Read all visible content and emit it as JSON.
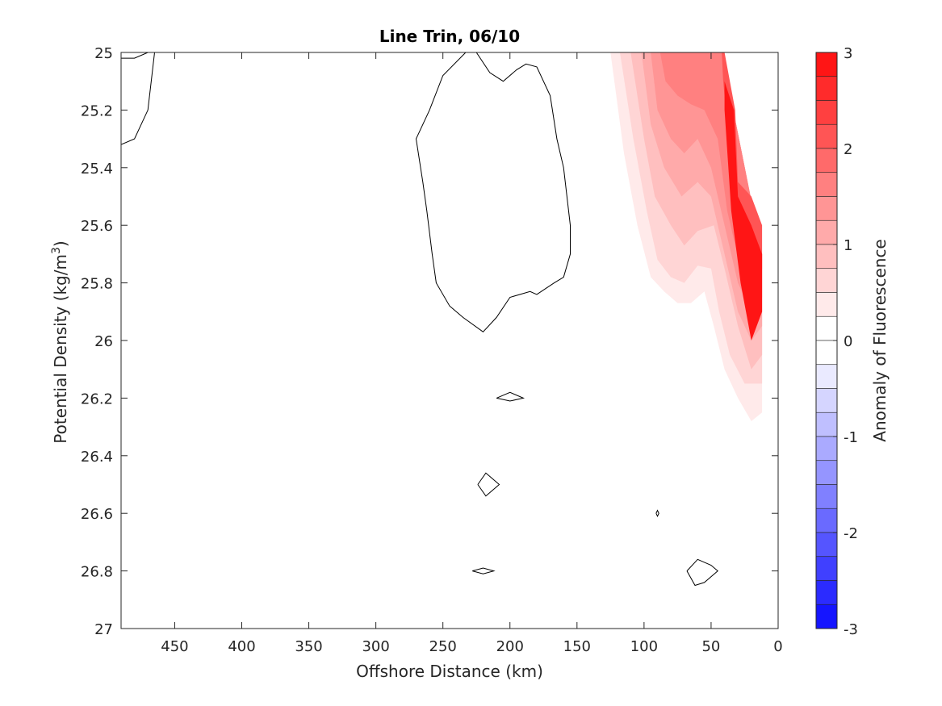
{
  "chart_data": {
    "type": "contour",
    "title": "Line Trin, 06/10",
    "xlabel": "Offshore Distance (km)",
    "ylabel": {
      "main": "Potential Density (kg/m",
      "sup": "3",
      "close": ")"
    },
    "xlim": [
      490,
      0
    ],
    "x_reversed": true,
    "ylim": [
      25,
      27
    ],
    "y_reversed": true,
    "x_ticks": [
      450,
      400,
      350,
      300,
      250,
      200,
      150,
      100,
      50,
      0
    ],
    "y_ticks": [
      25,
      25.2,
      25.4,
      25.6,
      25.8,
      26,
      26.2,
      26.4,
      26.6,
      26.8,
      27
    ],
    "y_tick_labels": [
      "25",
      "25.2",
      "25.4",
      "25.6",
      "25.8",
      "26",
      "26.2",
      "26.4",
      "26.6",
      "26.8",
      "27"
    ],
    "grid": false,
    "colorbar": {
      "label": "Anomaly of Fluorescence",
      "clim": [
        -3,
        3
      ],
      "step": 0.25,
      "ticks": [
        3,
        2,
        1,
        0,
        -1,
        -2,
        -3
      ],
      "tick_labels": [
        "3",
        "2",
        "1",
        "0",
        "-1",
        "-2",
        "-3"
      ],
      "negative_color": "#0000ff",
      "positive_color": "#ff0000",
      "neutral_color": "#ffffff"
    },
    "filled_regions": [
      {
        "level": 0.25,
        "points": [
          [
            125,
            25
          ],
          [
            115,
            25.35
          ],
          [
            105,
            25.6
          ],
          [
            95,
            25.78
          ],
          [
            85,
            25.83
          ],
          [
            75,
            25.87
          ],
          [
            65,
            25.87
          ],
          [
            55,
            25.83
          ],
          [
            48,
            25.95
          ],
          [
            40,
            26.1
          ],
          [
            30,
            26.2
          ],
          [
            20,
            26.28
          ],
          [
            12,
            26.25
          ],
          [
            12,
            25.7
          ],
          [
            42,
            25.0
          ]
        ]
      },
      {
        "level": 0.5,
        "points": [
          [
            118,
            25
          ],
          [
            108,
            25.3
          ],
          [
            98,
            25.55
          ],
          [
            90,
            25.72
          ],
          [
            80,
            25.78
          ],
          [
            70,
            25.8
          ],
          [
            60,
            25.74
          ],
          [
            50,
            25.75
          ],
          [
            44,
            25.9
          ],
          [
            36,
            26.05
          ],
          [
            25,
            26.15
          ],
          [
            12,
            26.15
          ],
          [
            12,
            25.7
          ],
          [
            42,
            25.0
          ]
        ]
      },
      {
        "level": 0.75,
        "points": [
          [
            110,
            25
          ],
          [
            100,
            25.3
          ],
          [
            92,
            25.5
          ],
          [
            80,
            25.6
          ],
          [
            70,
            25.67
          ],
          [
            60,
            25.62
          ],
          [
            48,
            25.6
          ],
          [
            40,
            25.75
          ],
          [
            30,
            25.95
          ],
          [
            20,
            26.1
          ],
          [
            12,
            26.05
          ],
          [
            12,
            25.7
          ],
          [
            42,
            25.0
          ]
        ]
      },
      {
        "level": 1.0,
        "points": [
          [
            102,
            25
          ],
          [
            95,
            25.25
          ],
          [
            85,
            25.4
          ],
          [
            72,
            25.5
          ],
          [
            60,
            25.45
          ],
          [
            50,
            25.5
          ],
          [
            40,
            25.7
          ],
          [
            30,
            25.9
          ],
          [
            20,
            26.0
          ],
          [
            12,
            25.95
          ],
          [
            12,
            25.7
          ],
          [
            42,
            25.0
          ]
        ]
      },
      {
        "level": 1.25,
        "points": [
          [
            95,
            25
          ],
          [
            90,
            25.2
          ],
          [
            80,
            25.3
          ],
          [
            70,
            25.35
          ],
          [
            60,
            25.3
          ],
          [
            50,
            25.4
          ],
          [
            40,
            25.6
          ],
          [
            30,
            25.8
          ],
          [
            20,
            25.9
          ],
          [
            12,
            25.85
          ],
          [
            12,
            25.7
          ],
          [
            42,
            25.0
          ]
        ]
      },
      {
        "level": 1.5,
        "points": [
          [
            88,
            25
          ],
          [
            84,
            25.1
          ],
          [
            75,
            25.15
          ],
          [
            65,
            25.18
          ],
          [
            55,
            25.2
          ],
          [
            45,
            25.3
          ],
          [
            38,
            25.55
          ],
          [
            28,
            25.75
          ],
          [
            18,
            25.8
          ],
          [
            12,
            25.75
          ],
          [
            12,
            25.7
          ],
          [
            42,
            25.0
          ]
        ]
      },
      {
        "level": 2.0,
        "points": [
          [
            42,
            25
          ],
          [
            41,
            25.1
          ],
          [
            35,
            25.4
          ],
          [
            30,
            25.55
          ],
          [
            22,
            25.65
          ],
          [
            12,
            25.7
          ],
          [
            12,
            25.6
          ],
          [
            20,
            25.5
          ],
          [
            30,
            25.45
          ],
          [
            32,
            25.2
          ],
          [
            40,
            25.0
          ]
        ]
      },
      {
        "level": 2.75,
        "points": [
          [
            40,
            25.1
          ],
          [
            33,
            25.2
          ],
          [
            30,
            25.5
          ],
          [
            20,
            25.6
          ],
          [
            12,
            25.7
          ],
          [
            12,
            25.9
          ],
          [
            20,
            26.0
          ],
          [
            28,
            25.8
          ],
          [
            35,
            25.55
          ],
          [
            40,
            25.2
          ]
        ]
      }
    ],
    "zero_contours": [
      [
        [
          490,
          25.02
        ],
        [
          480,
          25.02
        ],
        [
          470,
          25.0
        ]
      ],
      [
        [
          490,
          25.32
        ],
        [
          480,
          25.3
        ],
        [
          470,
          25.2
        ],
        [
          465,
          25.0
        ]
      ],
      [
        [
          233,
          25.0
        ],
        [
          250,
          25.08
        ],
        [
          260,
          25.2
        ],
        [
          270,
          25.3
        ],
        [
          265,
          25.45
        ],
        [
          262,
          25.55
        ],
        [
          258,
          25.7
        ],
        [
          255,
          25.8
        ],
        [
          245,
          25.88
        ],
        [
          235,
          25.92
        ],
        [
          220,
          25.97
        ],
        [
          210,
          25.92
        ],
        [
          200,
          25.85
        ],
        [
          185,
          25.83
        ],
        [
          180,
          25.84
        ],
        [
          167,
          25.8
        ],
        [
          160,
          25.78
        ],
        [
          155,
          25.7
        ],
        [
          155,
          25.6
        ],
        [
          160,
          25.4
        ],
        [
          165,
          25.3
        ],
        [
          170,
          25.15
        ],
        [
          180,
          25.05
        ],
        [
          188,
          25.04
        ],
        [
          195,
          25.06
        ],
        [
          205,
          25.1
        ],
        [
          215,
          25.07
        ],
        [
          225,
          25.0
        ]
      ],
      [
        [
          210,
          26.2
        ],
        [
          200,
          26.18
        ],
        [
          190,
          26.2
        ],
        [
          200,
          26.21
        ],
        [
          210,
          26.2
        ]
      ],
      [
        [
          224,
          26.5
        ],
        [
          218,
          26.46
        ],
        [
          208,
          26.5
        ],
        [
          218,
          26.54
        ],
        [
          224,
          26.5
        ]
      ],
      [
        [
          228,
          26.8
        ],
        [
          220,
          26.79
        ],
        [
          212,
          26.8
        ],
        [
          220,
          26.81
        ],
        [
          228,
          26.8
        ]
      ],
      [
        [
          91,
          26.6
        ],
        [
          90,
          26.59
        ],
        [
          89,
          26.6
        ],
        [
          90,
          26.61
        ],
        [
          91,
          26.6
        ]
      ],
      [
        [
          68,
          26.8
        ],
        [
          60,
          26.76
        ],
        [
          50,
          26.78
        ],
        [
          45,
          26.8
        ],
        [
          55,
          26.84
        ],
        [
          62,
          26.85
        ],
        [
          68,
          26.8
        ]
      ]
    ]
  }
}
